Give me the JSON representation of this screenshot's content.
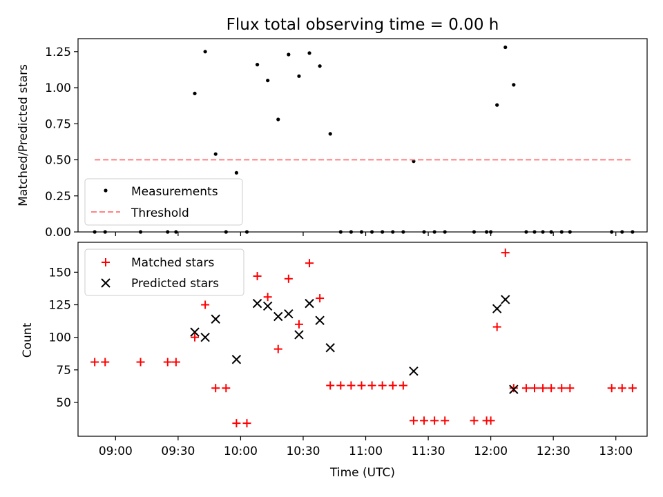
{
  "chart_data": [
    {
      "type": "scatter",
      "title": "Flux total observing time = 0.00 h",
      "xlabel": "",
      "ylabel": "Matched/Predicted stars",
      "ylim": [
        0,
        1.34
      ],
      "yticks": [
        "0.00",
        "0.25",
        "0.50",
        "0.75",
        "1.00",
        "1.25"
      ],
      "legend": {
        "position": "lower-left",
        "entries": [
          "Measurements",
          "Threshold"
        ]
      },
      "series": [
        {
          "name": "Measurements",
          "marker": "dot",
          "color": "#000000",
          "x": [
            "08:50",
            "08:55",
            "09:12",
            "09:25",
            "09:29",
            "09:38",
            "09:43",
            "09:48",
            "09:53",
            "09:58",
            "10:03",
            "10:08",
            "10:13",
            "10:18",
            "10:23",
            "10:28",
            "10:33",
            "10:38",
            "10:43",
            "10:48",
            "10:53",
            "10:58",
            "11:03",
            "11:08",
            "11:13",
            "11:18",
            "11:23",
            "11:28",
            "11:33",
            "11:38",
            "11:52",
            "11:58",
            "12:00",
            "12:03",
            "12:07",
            "12:11",
            "12:17",
            "12:21",
            "12:25",
            "12:29",
            "12:34",
            "12:38",
            "12:58",
            "13:03",
            "13:08"
          ],
          "y": [
            0,
            0,
            0,
            0,
            0,
            0.96,
            1.25,
            0.54,
            0,
            0.41,
            0,
            1.16,
            1.05,
            0.78,
            1.23,
            1.08,
            1.24,
            1.15,
            0.68,
            0,
            0,
            0,
            0,
            0,
            0,
            0,
            0.49,
            0,
            0,
            0,
            0,
            0,
            0,
            0.88,
            1.28,
            1.02,
            0,
            0,
            0,
            0,
            0,
            0,
            0,
            0,
            0
          ]
        },
        {
          "name": "Threshold",
          "marker": "dashed-line",
          "color": "#ff7070",
          "x": [
            "08:50",
            "13:08"
          ],
          "y": [
            0.5,
            0.5
          ]
        }
      ]
    },
    {
      "type": "scatter",
      "title": "",
      "xlabel": "Time (UTC)",
      "ylabel": "Count",
      "ylim": [
        24,
        173
      ],
      "yticks": [
        "50",
        "75",
        "100",
        "125",
        "150"
      ],
      "xticks": [
        "09:00",
        "09:30",
        "10:00",
        "10:30",
        "11:00",
        "11:30",
        "12:00",
        "12:30",
        "13:00"
      ],
      "legend": {
        "position": "top-left",
        "entries": [
          "Matched stars",
          "Predicted stars"
        ]
      },
      "series": [
        {
          "name": "Matched stars",
          "marker": "plus",
          "color": "#ff0000",
          "x": [
            "08:50",
            "08:55",
            "09:12",
            "09:25",
            "09:29",
            "09:38",
            "09:43",
            "09:48",
            "09:53",
            "09:58",
            "10:03",
            "10:08",
            "10:13",
            "10:18",
            "10:23",
            "10:28",
            "10:33",
            "10:38",
            "10:43",
            "10:48",
            "10:53",
            "10:58",
            "11:03",
            "11:08",
            "11:13",
            "11:18",
            "11:23",
            "11:28",
            "11:33",
            "11:38",
            "11:52",
            "11:58",
            "12:00",
            "12:03",
            "12:07",
            "12:11",
            "12:17",
            "12:21",
            "12:25",
            "12:29",
            "12:34",
            "12:38",
            "12:58",
            "13:03",
            "13:08"
          ],
          "y": [
            81,
            81,
            81,
            81,
            81,
            100,
            125,
            61,
            61,
            34,
            34,
            147,
            131,
            91,
            145,
            110,
            157,
            130,
            63,
            63,
            63,
            63,
            63,
            63,
            63,
            63,
            36,
            36,
            36,
            36,
            36,
            36,
            36,
            108,
            165,
            61,
            61,
            61,
            61,
            61,
            61,
            61,
            61,
            61,
            61
          ]
        },
        {
          "name": "Predicted stars",
          "marker": "x",
          "color": "#000000",
          "x": [
            "09:38",
            "09:43",
            "09:48",
            "09:58",
            "10:08",
            "10:13",
            "10:18",
            "10:23",
            "10:28",
            "10:33",
            "10:38",
            "10:43",
            "11:23",
            "12:03",
            "12:07",
            "12:11"
          ],
          "y": [
            104,
            100,
            114,
            83,
            126,
            124,
            116,
            118,
            102,
            126,
            113,
            92,
            74,
            122,
            129,
            60
          ]
        }
      ]
    }
  ]
}
